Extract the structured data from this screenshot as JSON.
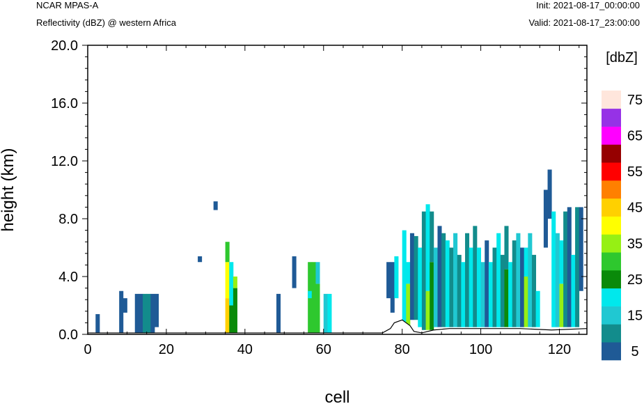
{
  "header": {
    "model": "NCAR MPAS-A",
    "field": "Reflectivity (dBZ) @ western Africa",
    "init": "Init: 2021-08-17_00:00:00",
    "valid": "Valid: 2021-08-17_23:00:00"
  },
  "chart_data": {
    "type": "heatmap",
    "xlabel": "cell",
    "ylabel": "height (km)",
    "xlim": [
      0,
      127
    ],
    "ylim": [
      0,
      20
    ],
    "xticks": [
      0,
      20,
      40,
      60,
      80,
      100,
      120
    ],
    "yticks": [
      "0.0",
      "4.0",
      "8.0",
      "12.0",
      "16.0",
      "20.0"
    ],
    "colorbar": {
      "title": "[dbZ]",
      "levels": [
        5,
        10,
        15,
        20,
        25,
        30,
        35,
        40,
        45,
        50,
        55,
        60,
        65,
        70,
        75
      ],
      "labels": [
        "5",
        "15",
        "25",
        "35",
        "45",
        "55",
        "65",
        "75"
      ],
      "colors": [
        "#1f5a96",
        "#128c8c",
        "#20c8d2",
        "#00e8ec",
        "#0a8a0a",
        "#2ec82e",
        "#96f014",
        "#ffff00",
        "#ffd000",
        "#ff8000",
        "#ff0000",
        "#960000",
        "#ff00ff",
        "#9632e6",
        "#ffe6dc"
      ]
    },
    "columns": [
      {
        "x": 2,
        "bands": [
          [
            0,
            1.4,
            5
          ]
        ]
      },
      {
        "x": 8,
        "bands": [
          [
            0,
            3.0,
            5
          ]
        ]
      },
      {
        "x": 9,
        "bands": [
          [
            1.5,
            2.5,
            5
          ]
        ]
      },
      {
        "x": 12,
        "bands": [
          [
            0,
            2.8,
            5
          ]
        ]
      },
      {
        "x": 13,
        "bands": [
          [
            0,
            2.8,
            5
          ]
        ]
      },
      {
        "x": 14,
        "bands": [
          [
            0,
            2.8,
            10
          ]
        ]
      },
      {
        "x": 15,
        "bands": [
          [
            0,
            2.8,
            10
          ]
        ]
      },
      {
        "x": 16,
        "bands": [
          [
            0,
            2.8,
            5
          ]
        ]
      },
      {
        "x": 17,
        "bands": [
          [
            0.5,
            2.8,
            5
          ]
        ]
      },
      {
        "x": 28,
        "bands": [
          [
            5.0,
            5.4,
            5
          ]
        ]
      },
      {
        "x": 32,
        "bands": [
          [
            8.6,
            9.2,
            5
          ]
        ]
      },
      {
        "x": 35,
        "bands": [
          [
            0,
            2.5,
            45
          ],
          [
            2.5,
            5.0,
            40
          ],
          [
            5.0,
            6.4,
            30
          ]
        ]
      },
      {
        "x": 36,
        "bands": [
          [
            0,
            2.0,
            25
          ],
          [
            2.0,
            5.0,
            20
          ]
        ]
      },
      {
        "x": 37,
        "bands": [
          [
            0,
            3.2,
            25
          ],
          [
            3.2,
            4.0,
            35
          ]
        ]
      },
      {
        "x": 48,
        "bands": [
          [
            0,
            2.8,
            5
          ]
        ]
      },
      {
        "x": 52,
        "bands": [
          [
            3.2,
            5.4,
            5
          ]
        ]
      },
      {
        "x": 56,
        "bands": [
          [
            0,
            5.0,
            30
          ],
          [
            2.5,
            3.0,
            20
          ]
        ]
      },
      {
        "x": 57,
        "bands": [
          [
            0,
            5.0,
            30
          ]
        ]
      },
      {
        "x": 58,
        "bands": [
          [
            0,
            3.5,
            30
          ],
          [
            3.5,
            5.0,
            15
          ]
        ]
      },
      {
        "x": 60,
        "bands": [
          [
            0,
            2.8,
            15
          ]
        ]
      },
      {
        "x": 61,
        "bands": [
          [
            0,
            2.8,
            20
          ]
        ]
      },
      {
        "x": 76,
        "bands": [
          [
            2.5,
            5.0,
            5
          ]
        ]
      },
      {
        "x": 77,
        "bands": [
          [
            1.5,
            5.0,
            5
          ]
        ]
      },
      {
        "x": 78,
        "bands": [
          [
            2.5,
            5.4,
            20
          ]
        ]
      },
      {
        "x": 80,
        "bands": [
          [
            0.5,
            7.2,
            20
          ]
        ]
      },
      {
        "x": 81,
        "bands": [
          [
            0.5,
            3.5,
            35
          ],
          [
            3.5,
            5.0,
            20
          ]
        ]
      },
      {
        "x": 82,
        "bands": [
          [
            1.0,
            7.0,
            5
          ]
        ]
      },
      {
        "x": 83,
        "bands": [
          [
            1.0,
            6.8,
            10
          ]
        ]
      },
      {
        "x": 84,
        "bands": [
          [
            0.5,
            6.0,
            20
          ]
        ]
      },
      {
        "x": 85,
        "bands": [
          [
            0.3,
            8.5,
            10
          ]
        ]
      },
      {
        "x": 86,
        "bands": [
          [
            0.3,
            3.0,
            35
          ],
          [
            3.0,
            9.0,
            20
          ]
        ]
      },
      {
        "x": 87,
        "bands": [
          [
            0.3,
            5.0,
            25
          ],
          [
            5.0,
            8.5,
            10
          ]
        ]
      },
      {
        "x": 88,
        "bands": [
          [
            0.5,
            6.0,
            15
          ]
        ]
      },
      {
        "x": 89,
        "bands": [
          [
            0.5,
            7.5,
            5
          ]
        ]
      },
      {
        "x": 90,
        "bands": [
          [
            0.5,
            7.0,
            10
          ]
        ]
      },
      {
        "x": 91,
        "bands": [
          [
            0.5,
            6.5,
            20
          ]
        ]
      },
      {
        "x": 92,
        "bands": [
          [
            0.5,
            6.0,
            10
          ]
        ]
      },
      {
        "x": 93,
        "bands": [
          [
            0.5,
            7.0,
            15
          ]
        ]
      },
      {
        "x": 94,
        "bands": [
          [
            0.5,
            5.5,
            10
          ]
        ]
      },
      {
        "x": 95,
        "bands": [
          [
            0.5,
            5.0,
            20
          ]
        ]
      },
      {
        "x": 96,
        "bands": [
          [
            0.5,
            7.0,
            10
          ]
        ]
      },
      {
        "x": 97,
        "bands": [
          [
            0.5,
            6.0,
            20
          ]
        ]
      },
      {
        "x": 98,
        "bands": [
          [
            0.5,
            7.5,
            10
          ]
        ]
      },
      {
        "x": 99,
        "bands": [
          [
            0.5,
            6.0,
            20
          ]
        ]
      },
      {
        "x": 100,
        "bands": [
          [
            0.5,
            5.0,
            15
          ]
        ]
      },
      {
        "x": 101,
        "bands": [
          [
            0.5,
            6.5,
            5
          ]
        ]
      },
      {
        "x": 102,
        "bands": [
          [
            0.5,
            5.0,
            20
          ]
        ]
      },
      {
        "x": 103,
        "bands": [
          [
            0.5,
            6.0,
            10
          ]
        ]
      },
      {
        "x": 104,
        "bands": [
          [
            0.5,
            7.0,
            20
          ]
        ]
      },
      {
        "x": 105,
        "bands": [
          [
            0.5,
            5.5,
            10
          ]
        ]
      },
      {
        "x": 106,
        "bands": [
          [
            0.5,
            4.5,
            25
          ],
          [
            4.5,
            7.5,
            10
          ]
        ]
      },
      {
        "x": 107,
        "bands": [
          [
            0.5,
            5.0,
            20
          ]
        ]
      },
      {
        "x": 108,
        "bands": [
          [
            0.5,
            6.5,
            10
          ]
        ]
      },
      {
        "x": 109,
        "bands": [
          [
            0.5,
            7.0,
            15
          ]
        ]
      },
      {
        "x": 110,
        "bands": [
          [
            0.5,
            6.0,
            5
          ]
        ]
      },
      {
        "x": 111,
        "bands": [
          [
            0.5,
            4.0,
            35
          ],
          [
            4.0,
            6.0,
            20
          ]
        ]
      },
      {
        "x": 112,
        "bands": [
          [
            0.5,
            7.0,
            15
          ]
        ]
      },
      {
        "x": 113,
        "bands": [
          [
            0.5,
            5.5,
            10
          ]
        ]
      },
      {
        "x": 114,
        "bands": [
          [
            0.5,
            3.0,
            20
          ]
        ]
      },
      {
        "x": 116,
        "bands": [
          [
            6.0,
            10.0,
            5
          ]
        ]
      },
      {
        "x": 117,
        "bands": [
          [
            8.0,
            11.4,
            5
          ]
        ]
      },
      {
        "x": 118,
        "bands": [
          [
            0.5,
            8.5,
            20
          ]
        ]
      },
      {
        "x": 119,
        "bands": [
          [
            0.5,
            7.0,
            15
          ]
        ]
      },
      {
        "x": 120,
        "bands": [
          [
            0.5,
            3.5,
            35
          ],
          [
            3.5,
            6.5,
            20
          ]
        ]
      },
      {
        "x": 121,
        "bands": [
          [
            0.5,
            8.5,
            10
          ]
        ]
      },
      {
        "x": 122,
        "bands": [
          [
            0.5,
            8.8,
            5
          ]
        ]
      },
      {
        "x": 123,
        "bands": [
          [
            0.5,
            5.5,
            20
          ]
        ]
      },
      {
        "x": 124,
        "bands": [
          [
            0.5,
            8.8,
            10
          ]
        ]
      },
      {
        "x": 125,
        "bands": [
          [
            3.0,
            8.8,
            5
          ]
        ]
      }
    ],
    "terrain": [
      [
        0,
        0.1
      ],
      [
        75,
        0.1
      ],
      [
        77,
        0.4
      ],
      [
        78,
        0.8
      ],
      [
        80,
        1.0
      ],
      [
        82,
        0.6
      ],
      [
        83,
        0.2
      ],
      [
        85,
        0.1
      ],
      [
        88,
        0.3
      ],
      [
        92,
        0.4
      ],
      [
        110,
        0.4
      ],
      [
        118,
        0.3
      ],
      [
        127,
        0.4
      ]
    ]
  }
}
